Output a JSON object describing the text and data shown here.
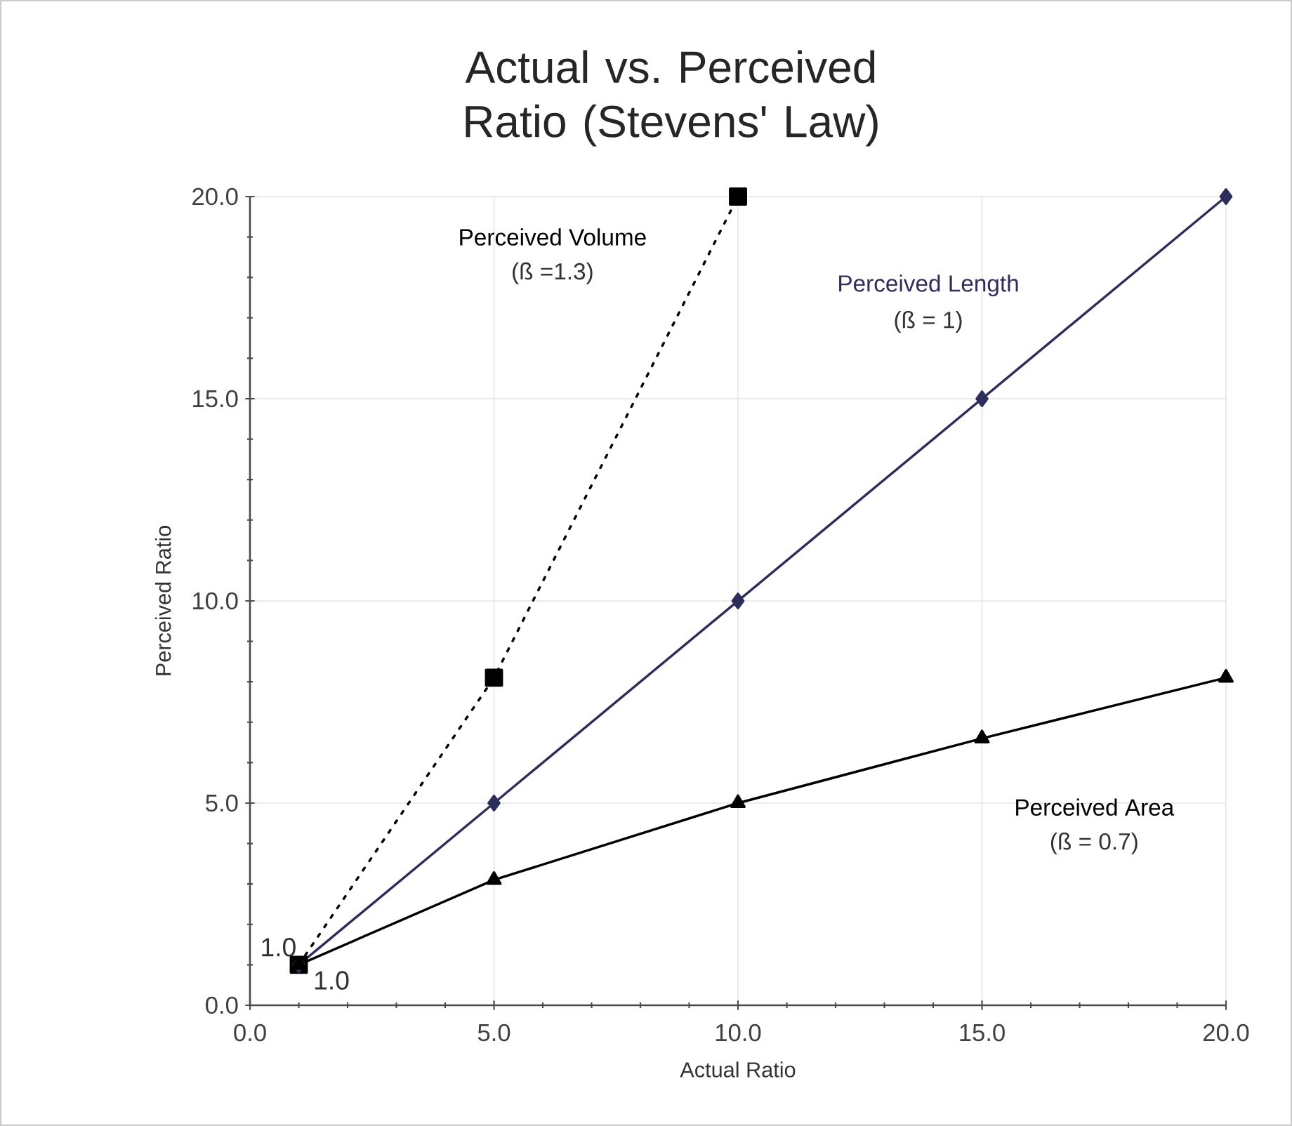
{
  "chart_data": {
    "type": "line",
    "title": "Actual vs. Perceived Ratio (Stevens' Law)",
    "xlabel": "Actual Ratio",
    "ylabel": "Perceived Ratio",
    "xlim": [
      0,
      20
    ],
    "ylim": [
      0,
      20
    ],
    "xticks": [
      {
        "value": 0,
        "label": "0.0"
      },
      {
        "value": 5,
        "label": "5.0"
      },
      {
        "value": 10,
        "label": "10.0"
      },
      {
        "value": 15,
        "label": "15.0"
      },
      {
        "value": 20,
        "label": "20.0"
      }
    ],
    "yticks": [
      {
        "value": 0,
        "label": "0.0"
      },
      {
        "value": 5,
        "label": "5.0"
      },
      {
        "value": 10,
        "label": "10.0"
      },
      {
        "value": 15,
        "label": "15.0"
      },
      {
        "value": 20,
        "label": "20.0"
      }
    ],
    "grid": true,
    "series": [
      {
        "name": "Perceived Volume",
        "color": "#000000",
        "marker": "square",
        "line_style": "dotted",
        "x": [
          1,
          5,
          10
        ],
        "values": [
          1,
          8.1,
          20
        ]
      },
      {
        "name": "Perceived Length",
        "color": "#2e2e5a",
        "marker": "diamond",
        "line_style": "solid",
        "x": [
          1,
          5,
          10,
          15,
          20
        ],
        "values": [
          1,
          5,
          10,
          15,
          20
        ]
      },
      {
        "name": "Perceived Area",
        "color": "#000000",
        "marker": "triangle",
        "line_style": "solid",
        "x": [
          1,
          5,
          10,
          15,
          20
        ],
        "values": [
          1,
          3.1,
          5,
          6.6,
          8.1
        ]
      }
    ],
    "annotations": [
      "(ß =1.3)",
      "(ß = 1)",
      "(ß = 0.7)",
      {
        "text": "1.0",
        "x": 1,
        "y": 1
      },
      {
        "text": "1.0",
        "x": 1,
        "y": 1
      }
    ]
  }
}
